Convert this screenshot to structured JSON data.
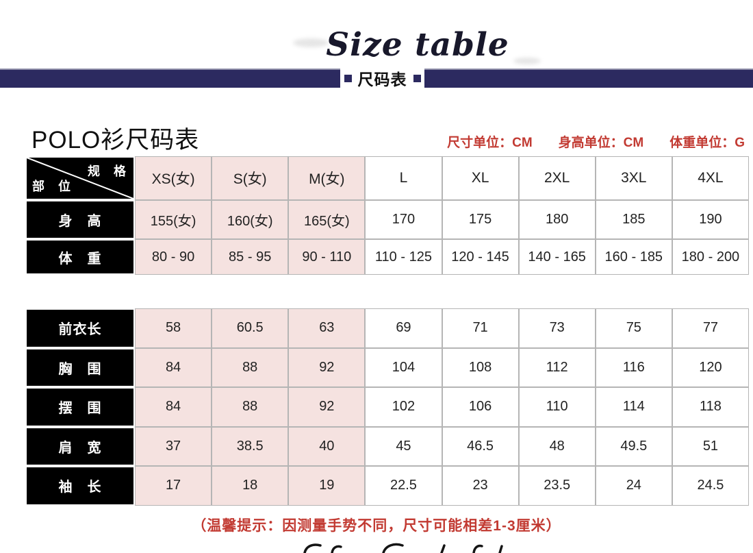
{
  "page": {
    "title_en": "Size table",
    "banner_label": "尺码表",
    "heading": "POLO衫尺码表",
    "units": [
      "尺寸单位：CM",
      "身高单位：CM",
      "体重单位：G"
    ],
    "note": "（温馨提示：因测量手势不同，尺寸可能相差1-3厘米）"
  },
  "colors": {
    "navy": "#2c2a60",
    "pink": "#f5e2e0",
    "red": "#c23a32",
    "cell-border": "#b5b5b5"
  },
  "size_table": {
    "corner": {
      "top_right": "规　格",
      "bottom_left": "部　位"
    },
    "columns": [
      "XS(女)",
      "S(女)",
      "M(女)",
      "L",
      "XL",
      "2XL",
      "3XL",
      "4XL"
    ],
    "rows_top": [
      {
        "label": "身　高",
        "values": [
          "155(女)",
          "160(女)",
          "165(女)",
          "170",
          "175",
          "180",
          "185",
          "190"
        ]
      },
      {
        "label": "体　重",
        "values": [
          "80 - 90",
          "85 - 95",
          "90 - 110",
          "110 - 125",
          "120 - 145",
          "140 - 165",
          "160 - 185",
          "180 - 200"
        ]
      }
    ],
    "rows_bottom": [
      {
        "label": "前衣长",
        "values": [
          "58",
          "60.5",
          "63",
          "69",
          "71",
          "73",
          "75",
          "77"
        ]
      },
      {
        "label": "胸　围",
        "values": [
          "84",
          "88",
          "92",
          "104",
          "108",
          "112",
          "116",
          "120"
        ]
      },
      {
        "label": "摆　围",
        "values": [
          "84",
          "88",
          "92",
          "102",
          "106",
          "110",
          "114",
          "118"
        ]
      },
      {
        "label": "肩　宽",
        "values": [
          "37",
          "38.5",
          "40",
          "45",
          "46.5",
          "48",
          "49.5",
          "51"
        ]
      },
      {
        "label": "袖　长",
        "values": [
          "17",
          "18",
          "19",
          "22.5",
          "23",
          "23.5",
          "24",
          "24.5"
        ]
      }
    ]
  }
}
